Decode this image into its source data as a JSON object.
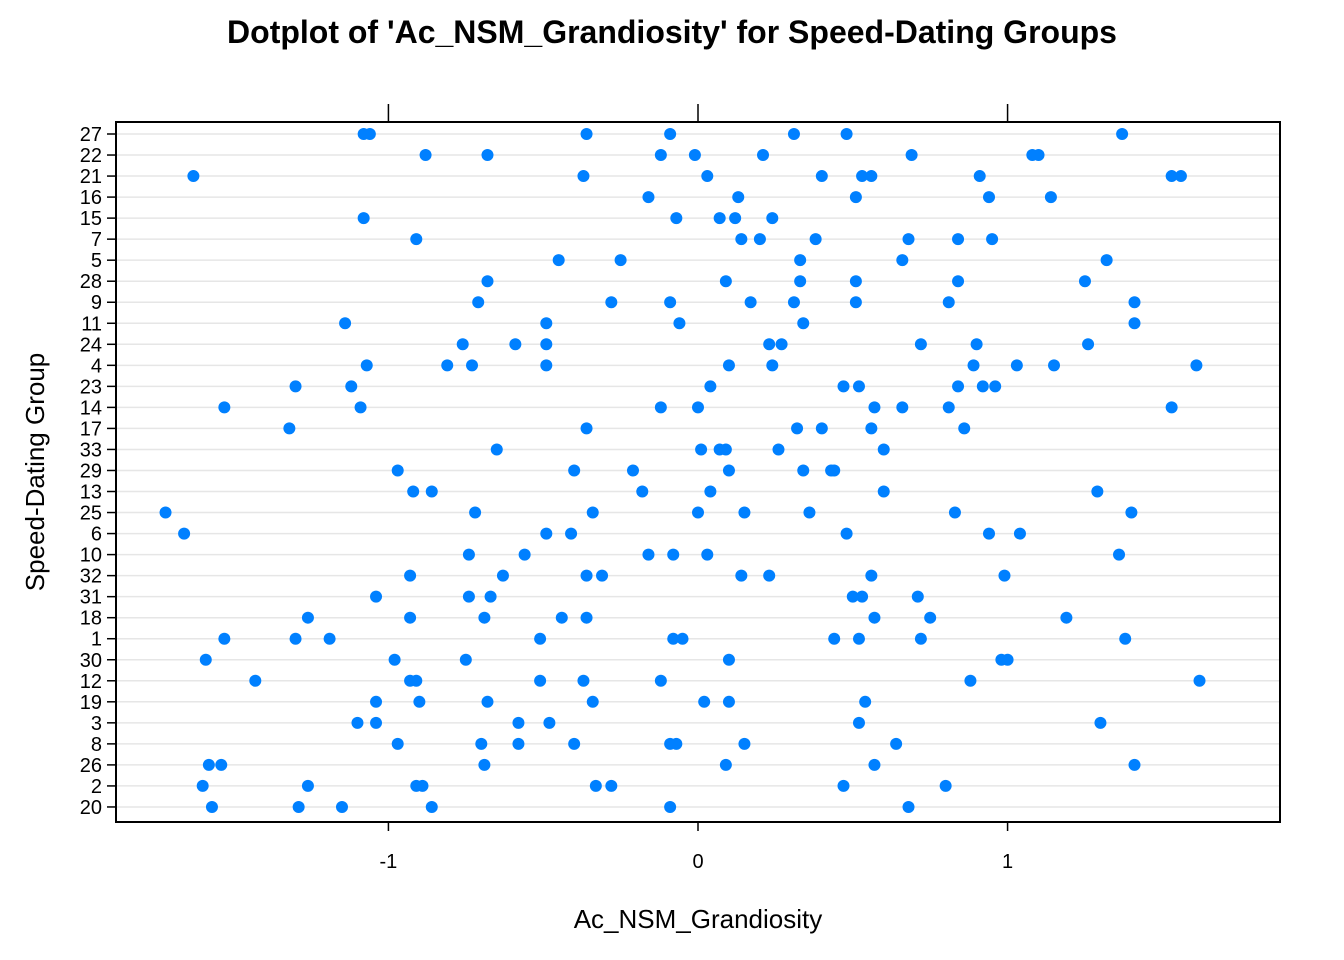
{
  "chart_data": {
    "type": "scatter",
    "title": "Dotplot of 'Ac_NSM_Grandiosity' for Speed-Dating Groups",
    "xlabel": "Ac_NSM_Grandiosity",
    "ylabel": "Speed-Dating Group",
    "xlim": [
      -1.88,
      1.88
    ],
    "xticks": [
      -1,
      0,
      1
    ],
    "xtick_labels": [
      "-1",
      "0",
      "1"
    ],
    "grid": "horizontal",
    "point_color": "#0080ff",
    "groups": [
      "27",
      "22",
      "21",
      "16",
      "15",
      "7",
      "5",
      "28",
      "9",
      "11",
      "24",
      "4",
      "23",
      "14",
      "17",
      "33",
      "29",
      "13",
      "25",
      "6",
      "10",
      "32",
      "31",
      "18",
      "1",
      "30",
      "12",
      "19",
      "3",
      "8",
      "26",
      "2",
      "20"
    ],
    "series": [
      {
        "group": "27",
        "values": [
          -1.08,
          -1.06,
          -0.36,
          -0.09,
          0.31,
          0.48,
          1.37
        ]
      },
      {
        "group": "22",
        "values": [
          -0.88,
          -0.68,
          -0.12,
          -0.01,
          0.21,
          0.69,
          1.08,
          1.1
        ]
      },
      {
        "group": "21",
        "values": [
          -1.63,
          -0.37,
          0.03,
          0.4,
          0.53,
          0.56,
          0.91,
          1.53,
          1.56
        ]
      },
      {
        "group": "16",
        "values": [
          -0.16,
          0.13,
          0.51,
          0.94,
          1.14
        ]
      },
      {
        "group": "15",
        "values": [
          -1.08,
          -0.07,
          0.07,
          0.12,
          0.24
        ]
      },
      {
        "group": "7",
        "values": [
          -0.91,
          0.14,
          0.2,
          0.38,
          0.68,
          0.84,
          0.95
        ]
      },
      {
        "group": "5",
        "values": [
          -0.45,
          -0.25,
          0.33,
          0.66,
          1.32
        ]
      },
      {
        "group": "28",
        "values": [
          -0.68,
          0.09,
          0.33,
          0.51,
          0.84,
          1.25
        ]
      },
      {
        "group": "9",
        "values": [
          -0.71,
          -0.28,
          -0.09,
          0.17,
          0.31,
          0.51,
          0.81,
          1.41
        ]
      },
      {
        "group": "11",
        "values": [
          -1.14,
          -0.49,
          -0.06,
          0.34,
          1.41
        ]
      },
      {
        "group": "24",
        "values": [
          -0.76,
          -0.59,
          -0.49,
          0.23,
          0.27,
          0.72,
          0.9,
          1.26
        ]
      },
      {
        "group": "4",
        "values": [
          -1.07,
          -0.81,
          -0.73,
          -0.49,
          0.1,
          0.24,
          0.89,
          1.03,
          1.15,
          1.61
        ]
      },
      {
        "group": "23",
        "values": [
          -1.3,
          -1.12,
          0.04,
          0.47,
          0.52,
          0.84,
          0.92,
          0.96
        ]
      },
      {
        "group": "14",
        "values": [
          -1.53,
          -1.09,
          -0.12,
          0.0,
          0.57,
          0.66,
          0.81,
          1.53
        ]
      },
      {
        "group": "17",
        "values": [
          -1.32,
          -0.36,
          0.32,
          0.4,
          0.56,
          0.86
        ]
      },
      {
        "group": "33",
        "values": [
          -0.65,
          0.01,
          0.07,
          0.09,
          0.26,
          0.6
        ]
      },
      {
        "group": "29",
        "values": [
          -0.97,
          -0.4,
          -0.21,
          0.1,
          0.34,
          0.43,
          0.44
        ]
      },
      {
        "group": "13",
        "values": [
          -0.92,
          -0.86,
          -0.18,
          0.04,
          0.6,
          1.29
        ]
      },
      {
        "group": "25",
        "values": [
          -1.72,
          -0.72,
          -0.34,
          0.0,
          0.15,
          0.36,
          0.83,
          1.4
        ]
      },
      {
        "group": "6",
        "values": [
          -1.66,
          -0.49,
          -0.41,
          0.48,
          0.94,
          1.04
        ]
      },
      {
        "group": "10",
        "values": [
          -0.74,
          -0.56,
          -0.16,
          -0.08,
          0.03,
          1.36
        ]
      },
      {
        "group": "32",
        "values": [
          -0.93,
          -0.63,
          -0.36,
          -0.31,
          0.14,
          0.23,
          0.56,
          0.99
        ]
      },
      {
        "group": "31",
        "values": [
          -1.04,
          -0.74,
          -0.67,
          0.5,
          0.53,
          0.71
        ]
      },
      {
        "group": "18",
        "values": [
          -1.26,
          -0.93,
          -0.69,
          -0.44,
          -0.36,
          0.57,
          0.75,
          1.19
        ]
      },
      {
        "group": "1",
        "values": [
          -1.53,
          -1.3,
          -1.19,
          -0.51,
          -0.08,
          -0.05,
          0.44,
          0.52,
          0.72,
          1.38
        ]
      },
      {
        "group": "30",
        "values": [
          -1.59,
          -0.98,
          -0.75,
          0.1,
          0.98,
          1.0
        ]
      },
      {
        "group": "12",
        "values": [
          -1.43,
          -0.93,
          -0.91,
          -0.51,
          -0.37,
          -0.12,
          0.88,
          1.62
        ]
      },
      {
        "group": "19",
        "values": [
          -1.04,
          -0.9,
          -0.68,
          -0.34,
          0.02,
          0.1,
          0.54
        ]
      },
      {
        "group": "3",
        "values": [
          -1.1,
          -1.04,
          -0.58,
          -0.48,
          0.52,
          1.3
        ]
      },
      {
        "group": "8",
        "values": [
          -0.97,
          -0.7,
          -0.58,
          -0.4,
          -0.09,
          -0.07,
          0.15,
          0.64
        ]
      },
      {
        "group": "26",
        "values": [
          -1.58,
          -1.54,
          -0.69,
          0.09,
          0.57,
          1.41
        ]
      },
      {
        "group": "2",
        "values": [
          -1.6,
          -1.26,
          -0.91,
          -0.89,
          -0.33,
          -0.28,
          0.47,
          0.8
        ]
      },
      {
        "group": "20",
        "values": [
          -1.57,
          -1.29,
          -1.15,
          -0.86,
          -0.09,
          0.68
        ]
      }
    ]
  }
}
